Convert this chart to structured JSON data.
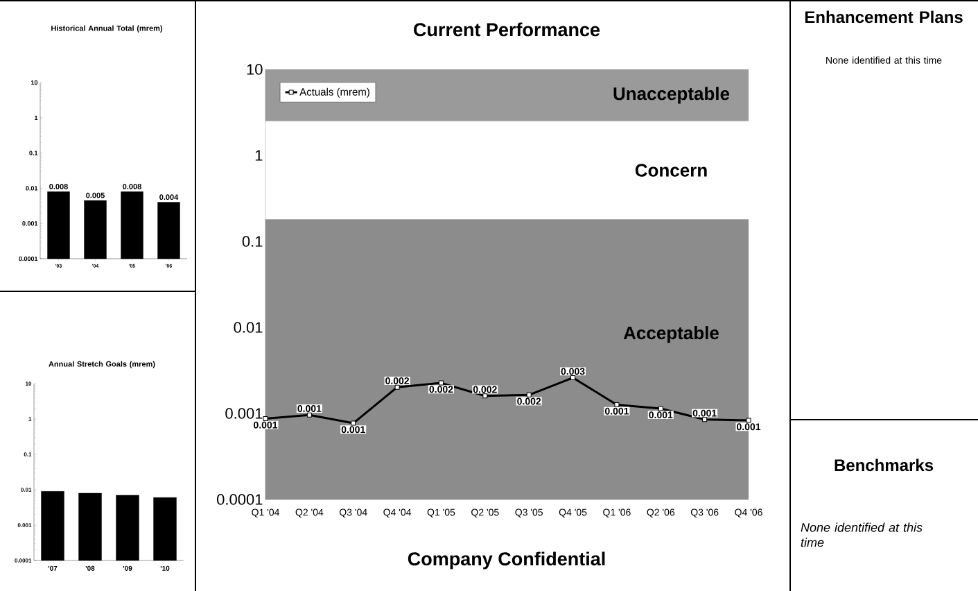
{
  "chart_data": [
    {
      "type": "bar",
      "title": "Historical Annual Total (mrem)",
      "categories": [
        "'03",
        "'04",
        "'05",
        "'06"
      ],
      "values": [
        0.008,
        0.0045,
        0.008,
        0.004
      ],
      "value_labels": [
        "0.008",
        "0.005",
        "0.008",
        "0.004"
      ],
      "color": "#000000",
      "log": true,
      "ylim": [
        0.0001,
        10
      ],
      "yticks": [
        0.0001,
        0.001,
        0.01,
        0.1,
        1,
        10
      ]
    },
    {
      "type": "bar",
      "title": "Annual Stretch Goals (mrem)",
      "categories": [
        "'07",
        "'08",
        "'09",
        "'10"
      ],
      "values": [
        0.009,
        0.008,
        0.007,
        0.006
      ],
      "color": "#000000",
      "log": true,
      "ylim": [
        0.0001,
        10
      ],
      "yticks": [
        0.0001,
        0.001,
        0.01,
        0.1,
        1,
        10
      ]
    },
    {
      "type": "line",
      "title": "Current Performance",
      "categories": [
        "Q1 '04",
        "Q2 '04",
        "Q3 '04",
        "Q4 '04",
        "Q1 '05",
        "Q2 '05",
        "Q3 '05",
        "Q4 '05",
        "Q1 '06",
        "Q2 '06",
        "Q3 '06",
        "Q4 '06"
      ],
      "series": [
        {
          "name": "Actuals (mrem)",
          "color": "#000000",
          "values": [
            0.00087,
            0.00096,
            0.00077,
            0.00202,
            0.00226,
            0.0016,
            0.00164,
            0.0026,
            0.00126,
            0.00114,
            0.00085,
            0.00083
          ],
          "value_labels": [
            "0.001",
            "0.001",
            "0.001",
            "0.002",
            "0.002",
            "0.002",
            "0.002",
            "0.003",
            "0.001",
            "0.001",
            "0.001",
            "0.001"
          ]
        }
      ],
      "bands": [
        {
          "axis": "y",
          "from": 2.5,
          "to": 10,
          "label": "Unacceptable",
          "color": "#9a9a9a"
        },
        {
          "axis": "y",
          "from": 0.18,
          "to": 2.5,
          "label": "Concern",
          "color": "#ffffff"
        },
        {
          "axis": "y",
          "from": 0.0001,
          "to": 0.18,
          "label": "Acceptable",
          "color": "#8c8c8c"
        }
      ],
      "marker": "square",
      "line_style": "solid",
      "legend": "top left",
      "log": true,
      "ylim": [
        0.0001,
        10
      ],
      "yticks": [
        0.0001,
        0.001,
        0.01,
        0.1,
        1,
        10
      ],
      "annotations": [
        "Company Confidential"
      ]
    },
    {
      "type": "other",
      "title": "Enhancement Plans",
      "annotations": [
        "None identified at this time"
      ]
    },
    {
      "type": "other",
      "title": "Benchmarks",
      "annotations": [
        "None identified at this time"
      ]
    }
  ]
}
